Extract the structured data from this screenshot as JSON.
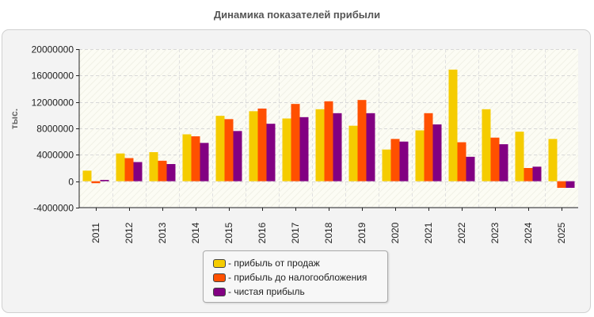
{
  "chart_data": {
    "type": "bar",
    "title": "Динамика показателей прибыли",
    "ylabel": "тыс.",
    "xlabel": "",
    "categories": [
      "2011",
      "2012",
      "2013",
      "2014",
      "2015",
      "2016",
      "2017",
      "2018",
      "2019",
      "2020",
      "2021",
      "2022",
      "2023",
      "2024",
      "2025"
    ],
    "ylim": [
      -4000000,
      20000000
    ],
    "yticks": [
      -4000000,
      0,
      4000000,
      8000000,
      12000000,
      16000000,
      20000000
    ],
    "ytick_labels": [
      "-4000000",
      "0",
      "4000000",
      "8000000",
      "12000000",
      "16000000",
      "20000000"
    ],
    "grid": true,
    "legend_position": "bottom-center",
    "series": [
      {
        "name": "- прибыль от продаж",
        "color": "#f5cc00",
        "values": [
          1600000,
          4200000,
          4400000,
          7100000,
          9900000,
          10600000,
          9500000,
          10900000,
          8400000,
          4800000,
          7700000,
          16900000,
          10900000,
          7500000,
          6400000
        ]
      },
      {
        "name": "- прибыль до налогообложения",
        "color": "#ff5000",
        "values": [
          -300000,
          3500000,
          3100000,
          6800000,
          9400000,
          11000000,
          11700000,
          12100000,
          12300000,
          6400000,
          10300000,
          5900000,
          6600000,
          2000000,
          -1000000
        ]
      },
      {
        "name": "- чистая прибыль",
        "color": "#820082",
        "values": [
          200000,
          2900000,
          2600000,
          5800000,
          7600000,
          8700000,
          9700000,
          10300000,
          10300000,
          6000000,
          8600000,
          3700000,
          5600000,
          2200000,
          -1000000
        ]
      }
    ]
  }
}
